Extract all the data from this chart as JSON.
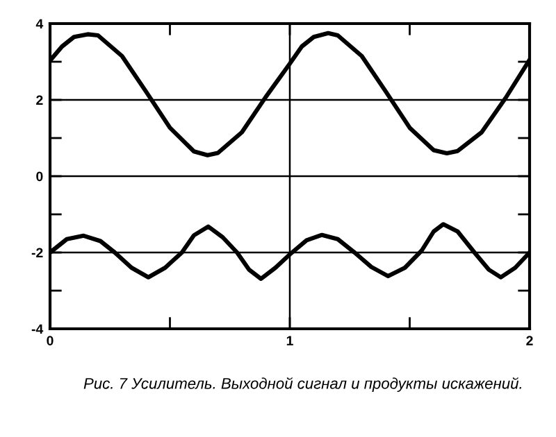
{
  "chart_data": {
    "type": "line",
    "annotations": [
      "Рис. 7 Усилитель. Выходной сигнал и продукты искажений."
    ],
    "series": [
      {
        "color": "#000000",
        "x": [
          0,
          0.05,
          0.1,
          0.157,
          0.2,
          0.3,
          0.4,
          0.5,
          0.6,
          0.657,
          0.7,
          0.8,
          0.9,
          1.0,
          1.05,
          1.1,
          1.16,
          1.2,
          1.3,
          1.4,
          1.5,
          1.6,
          1.655,
          1.7,
          1.8,
          1.9,
          2.0
        ],
        "values": [
          3.03,
          3.4,
          3.65,
          3.72,
          3.69,
          3.15,
          2.22,
          1.27,
          0.65,
          0.55,
          0.61,
          1.15,
          2.08,
          2.95,
          3.4,
          3.65,
          3.75,
          3.69,
          3.15,
          2.22,
          1.27,
          0.68,
          0.6,
          0.66,
          1.15,
          2.05,
          3.05
        ]
      },
      {
        "color": "#000000",
        "x": [
          0,
          0.07,
          0.14,
          0.21,
          0.27,
          0.34,
          0.41,
          0.48,
          0.55,
          0.6,
          0.66,
          0.72,
          0.78,
          0.83,
          0.88,
          0.94,
          1.0,
          1.07,
          1.134,
          1.2,
          1.27,
          1.34,
          1.41,
          1.48,
          1.55,
          1.6,
          1.64,
          1.7,
          1.77,
          1.83,
          1.88,
          1.94,
          2.0
        ],
        "values": [
          -2.0,
          -1.65,
          -1.56,
          -1.7,
          -2.0,
          -2.4,
          -2.65,
          -2.4,
          -2.0,
          -1.55,
          -1.32,
          -1.6,
          -2.0,
          -2.45,
          -2.69,
          -2.4,
          -2.05,
          -1.68,
          -1.54,
          -1.65,
          -2.0,
          -2.38,
          -2.62,
          -2.4,
          -1.95,
          -1.45,
          -1.26,
          -1.45,
          -2.0,
          -2.45,
          -2.65,
          -2.4,
          -2.0
        ]
      }
    ],
    "xlim": [
      0,
      2
    ],
    "ylim": [
      -4,
      4
    ],
    "xticks": [
      0,
      {
        "value": 0.5,
        "label": null
      },
      1,
      {
        "value": 1.5,
        "label": null
      },
      2
    ],
    "yticks": [
      -4,
      {
        "value": -3,
        "label": null
      },
      -2,
      {
        "value": -1,
        "label": null
      },
      0,
      {
        "value": 1,
        "label": null
      },
      2,
      {
        "value": 3,
        "label": null
      },
      4
    ],
    "grid": true,
    "line_style": "solid",
    "marker": "none"
  }
}
